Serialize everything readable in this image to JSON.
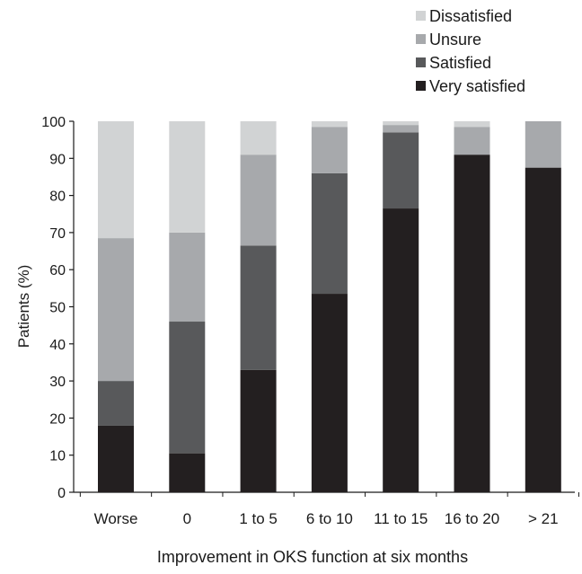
{
  "chart_data": {
    "type": "bar",
    "stacked": true,
    "title": "",
    "xlabel": "Improvement in OKS function at six months",
    "ylabel": "Patients (%)",
    "ylim": [
      0,
      100
    ],
    "yticks": [
      "0",
      "10",
      "20",
      "30",
      "40",
      "50",
      "60",
      "70",
      "80",
      "90",
      "100"
    ],
    "categories": [
      "Worse",
      "0",
      "1 to 5",
      "6 to 10",
      "11 to 15",
      "16 to 20",
      "> 21"
    ],
    "series": [
      {
        "name": "Very satisfied",
        "color": "#231f20",
        "values": [
          18,
          10.5,
          33,
          53.5,
          76.5,
          91,
          87.5
        ]
      },
      {
        "name": "Satisfied",
        "color": "#58595b",
        "values": [
          12,
          35.5,
          33.5,
          32.5,
          20.5,
          0,
          0
        ]
      },
      {
        "name": "Unsure",
        "color": "#a7a9ac",
        "values": [
          38.5,
          24,
          24.5,
          12.5,
          2,
          7.5,
          12.5
        ]
      },
      {
        "name": "Dissatisfied",
        "color": "#d1d3d4",
        "values": [
          31.5,
          30,
          9,
          1.5,
          1,
          1.5,
          0
        ]
      }
    ],
    "legend_order": [
      "Dissatisfied",
      "Unsure",
      "Satisfied",
      "Very satisfied"
    ],
    "legend_position": "top-right",
    "grid": false
  }
}
